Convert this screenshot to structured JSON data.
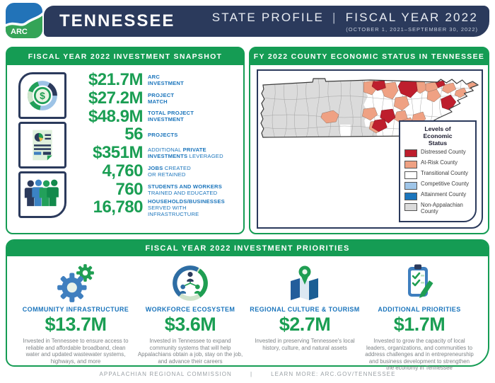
{
  "theme": {
    "navy": "#2b3a5c",
    "green": "#159c54",
    "green2": "#1a9e53",
    "blue": "#1b75bc"
  },
  "header": {
    "logo_text": "ARC",
    "state": "TENNESSEE",
    "profile_label": "STATE PROFILE",
    "separator": "|",
    "fiscal_year": "FISCAL YEAR 2022",
    "date_range": "(OCTOBER 1, 2021–SEPTEMBER 30, 2022)"
  },
  "snapshot": {
    "title": "FISCAL YEAR 2022 INVESTMENT SNAPSHOT",
    "dollar_symbol": "$",
    "icons": [
      "coin-donut-icon",
      "document-chart-icon",
      "people-group-icon"
    ],
    "stats": [
      {
        "value": "$21.7M",
        "label_lines": [
          [
            {
              "text": "ARC",
              "bold": true
            }
          ],
          [
            {
              "text": "INVESTMENT",
              "bold": true
            }
          ]
        ]
      },
      {
        "value": "$27.2M",
        "label_lines": [
          [
            {
              "text": "PROJECT",
              "bold": true
            }
          ],
          [
            {
              "text": "MATCH",
              "bold": true
            }
          ]
        ]
      },
      {
        "value": "$48.9M",
        "label_lines": [
          [
            {
              "text": "TOTAL PROJECT",
              "bold": true
            }
          ],
          [
            {
              "text": "INVESTMENT",
              "bold": true
            }
          ]
        ]
      },
      {
        "value": "56",
        "label_lines": [
          [
            {
              "text": "PROJECTS",
              "bold": true
            }
          ]
        ]
      },
      {
        "value": "$351M",
        "label_lines": [
          [
            {
              "text": "ADDITIONAL ",
              "bold": false
            },
            {
              "text": "PRIVATE",
              "bold": true
            }
          ],
          [
            {
              "text": "INVESTMENTS",
              "bold": true
            },
            {
              "text": " LEVERAGED",
              "bold": false
            }
          ]
        ]
      },
      {
        "value": "4,760",
        "label_lines": [
          [
            {
              "text": "JOBS",
              "bold": true
            },
            {
              "text": " CREATED",
              "bold": false
            }
          ],
          [
            {
              "text": "OR RETAINED",
              "bold": false
            }
          ]
        ]
      },
      {
        "value": "760",
        "label_lines": [
          [
            {
              "text": "STUDENTS AND WORKERS",
              "bold": true
            }
          ],
          [
            {
              "text": "TRAINED AND EDUCATED",
              "bold": false
            }
          ]
        ]
      },
      {
        "value": "16,780",
        "label_lines": [
          [
            {
              "text": "HOUSEHOLDS/BUSINESSES",
              "bold": true
            }
          ],
          [
            {
              "text": "SERVED WITH INFRASTRUCTURE",
              "bold": false
            }
          ]
        ]
      }
    ]
  },
  "map": {
    "title": "FY 2022 COUNTY ECONOMIC STATUS IN TENNESSEE",
    "colors": {
      "distressed": "#BE1E2D",
      "at_risk": "#EFA183",
      "transitional": "#FFFFFF",
      "competitive": "#9FC5E8",
      "attainment": "#1B75BC",
      "non_appalachian": "#DBDBDB"
    },
    "legend": {
      "title": "Levels of Economic Status",
      "items": [
        {
          "label": "Distressed County",
          "color": "#BE1E2D"
        },
        {
          "label": "At-Risk County",
          "color": "#EFA183"
        },
        {
          "label": "Transitional County",
          "color": "#FFFFFF"
        },
        {
          "label": "Competitive County",
          "color": "#9FC5E8"
        },
        {
          "label": "Attainment County",
          "color": "#1B75BC"
        },
        {
          "label": "Non-Appalachian County",
          "color": "#DBDBDB"
        }
      ]
    }
  },
  "priorities": {
    "title": "FISCAL YEAR 2022 INVESTMENT PRIORITIES",
    "items": [
      {
        "icon": "gears-icon",
        "title": "COMMUNITY INFRASTRUCTURE",
        "amount": "$13.7M",
        "description": "Invested in Tennessee to ensure access to reliable and affordable broadband, clean water and updated wastewater systems, highways, and more"
      },
      {
        "icon": "workforce-network-icon",
        "title": "WORKFORCE ECOSYSTEM",
        "amount": "$3.6M",
        "description": "Invested in Tennessee to expand community systems that will help Appalachians obtain a job, stay on the job, and advance their careers"
      },
      {
        "icon": "map-pin-icon",
        "title": "REGIONAL CULTURE & TOURISM",
        "amount": "$2.7M",
        "description": "Invested in preserving Tennessee's local history, culture, and natural assets"
      },
      {
        "icon": "clipboard-check-icon",
        "title": "ADDITIONAL PRIORITIES",
        "amount": "$1.7M",
        "description": "Invested to grow the capacity of local leaders, organizations, and communities to address challenges and in entrepreneurship and business development to strengthen the economy in Tennessee"
      }
    ]
  },
  "footer": {
    "org": "APPALACHIAN REGIONAL COMMISSION",
    "separator": "|",
    "learn_more": "LEARN MORE: ARC.GOV/TENNESSEE"
  }
}
